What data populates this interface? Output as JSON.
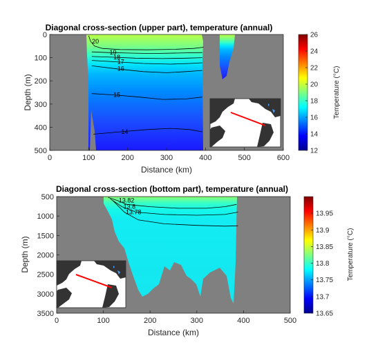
{
  "chart_data": [
    {
      "type": "heatmap",
      "title": "Diagonal cross-section (upper part), temperature (annual)",
      "xlabel": "Distance (km)",
      "ylabel": "Depth (m)",
      "xlim": [
        0,
        600
      ],
      "ylim": [
        500,
        0
      ],
      "y_reversed": true,
      "xticks": [
        "0",
        "100",
        "200",
        "300",
        "400",
        "500",
        "600"
      ],
      "xtick_values": [
        0,
        100,
        200,
        300,
        400,
        500,
        600
      ],
      "yticks": [
        "0",
        "100",
        "200",
        "300",
        "400",
        "500"
      ],
      "ytick_values": [
        0,
        100,
        200,
        300,
        400,
        500
      ],
      "colorbar": {
        "label": "Temperature (°C)",
        "range": [
          12,
          26
        ],
        "ticks": [
          "12",
          "14",
          "16",
          "18",
          "20",
          "22",
          "24",
          "26"
        ],
        "tick_values": [
          12,
          14,
          16,
          18,
          20,
          22,
          24,
          26
        ],
        "colormap": "jet"
      },
      "contours": [
        {
          "level": "20",
          "value": 20,
          "points": [
            [
              100,
              5
            ],
            [
              105,
              30
            ],
            [
              115,
              50
            ],
            [
              135,
              60
            ],
            [
              180,
              65
            ],
            [
              250,
              66
            ],
            [
              320,
              64
            ],
            [
              370,
              60
            ],
            [
              395,
              55
            ]
          ]
        },
        {
          "level": "19",
          "value": 19,
          "points": [
            [
              108,
              75
            ],
            [
              150,
              78
            ],
            [
              200,
              80
            ],
            [
              260,
              82
            ],
            [
              330,
              80
            ],
            [
              392,
              78
            ]
          ]
        },
        {
          "level": "18",
          "value": 18,
          "points": [
            [
              108,
              95
            ],
            [
              160,
              98
            ],
            [
              220,
              102
            ],
            [
              290,
              104
            ],
            [
              350,
              102
            ],
            [
              392,
              100
            ]
          ]
        },
        {
          "level": "17",
          "value": 17,
          "points": [
            [
              108,
              112
            ],
            [
              170,
              118
            ],
            [
              240,
              125
            ],
            [
              310,
              128
            ],
            [
              360,
              125
            ],
            [
              392,
              122
            ]
          ]
        },
        {
          "level": "16",
          "value": 16,
          "points": [
            [
              108,
              135
            ],
            [
              170,
              148
            ],
            [
              240,
              160
            ],
            [
              300,
              165
            ],
            [
              350,
              160
            ],
            [
              392,
              155
            ]
          ]
        },
        {
          "level": "15",
          "value": 15,
          "points": [
            [
              108,
              255
            ],
            [
              160,
              260
            ],
            [
              230,
              270
            ],
            [
              290,
              280
            ],
            [
              350,
              278
            ],
            [
              392,
              270
            ]
          ]
        },
        {
          "level": "14",
          "value": 14,
          "points": [
            [
              112,
              430
            ],
            [
              180,
              420
            ],
            [
              250,
              410
            ],
            [
              310,
              405
            ],
            [
              360,
              410
            ],
            [
              392,
              420
            ]
          ]
        }
      ]
    },
    {
      "type": "heatmap",
      "title": "Diagonal cross-section (bottom part), temperature (annual)",
      "xlabel": "Distance (km)",
      "ylabel": "Depth (m)",
      "xlim": [
        0,
        500
      ],
      "ylim": [
        3500,
        500
      ],
      "y_reversed": true,
      "xticks": [
        "0",
        "100",
        "200",
        "300",
        "400",
        "500"
      ],
      "xtick_values": [
        0,
        100,
        200,
        300,
        400,
        500
      ],
      "yticks": [
        "500",
        "1000",
        "1500",
        "2000",
        "2500",
        "3000",
        "3500"
      ],
      "ytick_values": [
        500,
        1000,
        1500,
        2000,
        2500,
        3000,
        3500
      ],
      "colorbar": {
        "label": "Temperature (°C)",
        "range": [
          13.65,
          14
        ],
        "ticks": [
          "13.65",
          "13.7",
          "13.75",
          "13.8",
          "13.85",
          "13.9",
          "13.95"
        ],
        "tick_values": [
          13.65,
          13.7,
          13.75,
          13.8,
          13.85,
          13.9,
          13.95
        ],
        "colormap": "jet"
      },
      "contours": [
        {
          "level": "13.82",
          "value": 13.82,
          "points": [
            [
              110,
              520
            ],
            [
              130,
              600
            ],
            [
              150,
              700
            ],
            [
              200,
              760
            ],
            [
              260,
              800
            ],
            [
              320,
              800
            ],
            [
              360,
              760
            ],
            [
              385,
              700
            ]
          ]
        },
        {
          "level": "13.8",
          "value": 13.8,
          "points": [
            [
              115,
              560
            ],
            [
              140,
              760
            ],
            [
              170,
              900
            ],
            [
              230,
              960
            ],
            [
              300,
              980
            ],
            [
              360,
              960
            ],
            [
              388,
              900
            ]
          ]
        },
        {
          "level": "13.78",
          "value": 13.78,
          "points": [
            [
              120,
              600
            ],
            [
              145,
              900
            ],
            [
              175,
              1100
            ],
            [
              230,
              1200
            ],
            [
              300,
              1240
            ],
            [
              360,
              1260
            ],
            [
              388,
              1250
            ]
          ]
        }
      ]
    }
  ]
}
